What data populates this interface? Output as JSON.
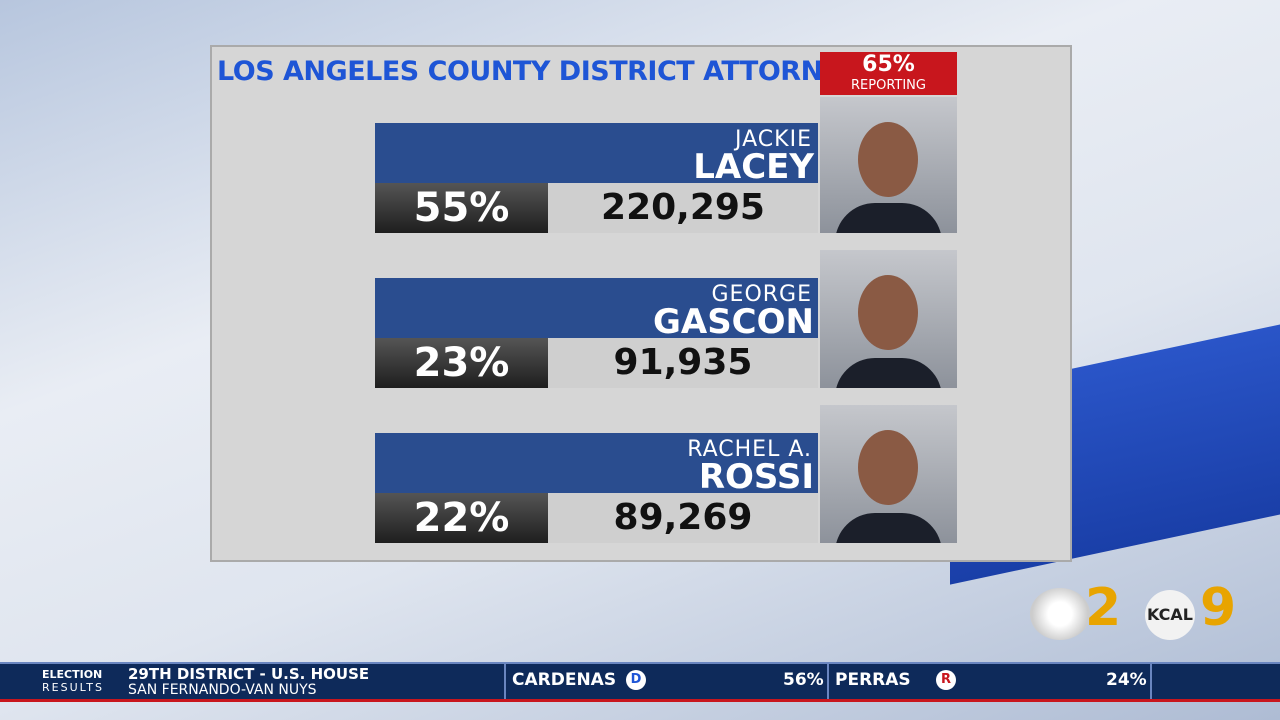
{
  "header": {
    "title": "LOS ANGELES COUNTY DISTRICT ATTORNEY",
    "reporting_percent": "65%",
    "reporting_label": "REPORTING"
  },
  "candidates": [
    {
      "first_name": "JACKIE",
      "last_name": "LACEY",
      "percent": "55%",
      "votes": "220,295"
    },
    {
      "first_name": "GEORGE",
      "last_name": "GASCON",
      "percent": "23%",
      "votes": "91,935"
    },
    {
      "first_name": "RACHEL A.",
      "last_name": "ROSSI",
      "percent": "22%",
      "votes": "89,269"
    }
  ],
  "logos": {
    "cbs_number": "2",
    "kcal": "KCAL",
    "kcal_number": "9"
  },
  "ticker": {
    "label_line1": "ELECTION",
    "label_line2": "RESULTS",
    "race": "29TH DISTRICT - U.S. HOUSE",
    "area": "SAN FERNANDO-VAN NUYS",
    "results": [
      {
        "name": "CARDENAS",
        "party": "D",
        "percent": "56%"
      },
      {
        "name": "PERRAS",
        "party": "R",
        "percent": "24%"
      }
    ]
  }
}
